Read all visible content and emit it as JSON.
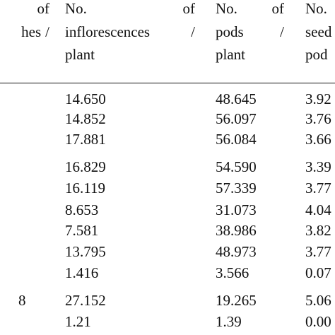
{
  "header": {
    "columns": [
      {
        "lines": [
          [
            "of"
          ],
          [
            "hes",
            "/"
          ]
        ]
      },
      {
        "lines": [
          [
            "No.",
            "of"
          ],
          [
            "inflorescences",
            "/"
          ],
          [
            "plant"
          ]
        ]
      },
      {
        "lines": [
          [
            "No.",
            "of"
          ],
          [
            "pods",
            "/"
          ],
          [
            "plant"
          ]
        ]
      },
      {
        "lines": [
          [
            "No."
          ],
          [
            "seed"
          ],
          [
            "pod"
          ]
        ]
      }
    ]
  },
  "table": {
    "rows": [
      [
        "14.650",
        "48.645",
        "3.92"
      ],
      [
        "14.852",
        "56.097",
        "3.76"
      ],
      [
        "17.881",
        "56.084",
        "3.66"
      ],
      [
        "16.829",
        "54.590",
        "3.39"
      ],
      [
        "16.119",
        "57.339",
        "3.77"
      ],
      [
        "8.653",
        "31.073",
        "4.04"
      ],
      [
        "7.581",
        "38.986",
        "3.82"
      ],
      [
        "13.795",
        "48.973",
        "3.77"
      ],
      [
        "1.416",
        "3.566",
        "0.07"
      ],
      [
        "8",
        "27.152",
        "19.265",
        "5.06"
      ],
      [
        "1.21",
        "1.39",
        "0.00"
      ]
    ]
  }
}
